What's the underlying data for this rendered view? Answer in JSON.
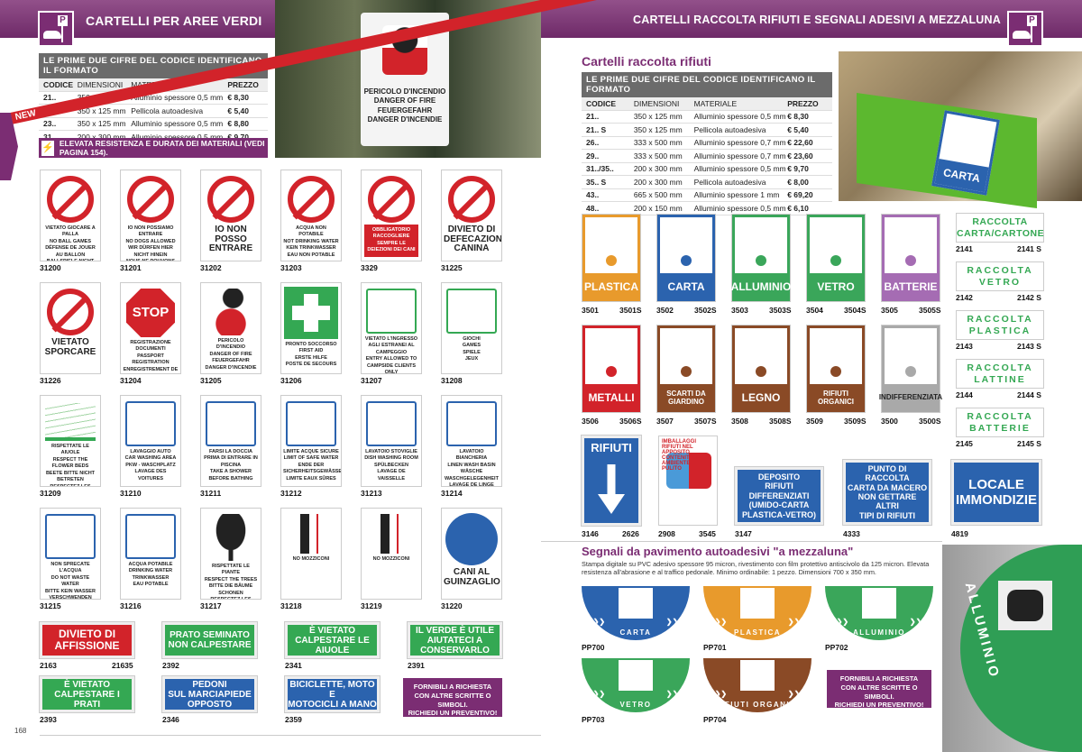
{
  "left_page": {
    "header_title": "CARTELLI PER AREE VERDI",
    "table": {
      "heading": "LE PRIME DUE CIFRE DEL CODICE IDENTIFICANO IL FORMATO",
      "columns": [
        "CODICE",
        "DIMENSIONI",
        "MATERIALE",
        "PREZZO"
      ],
      "rows": [
        [
          "21..",
          "350 x 125 mm",
          "Alluminio spessore 0,5 mm",
          "€ 8,30"
        ],
        [
          "21.. S",
          "350 x 125 mm",
          "Pellicola autoadesiva",
          "€ 5,40"
        ],
        [
          "23..",
          "350 x 125 mm",
          "Alluminio spessore 0,5 mm",
          "€ 8,80"
        ],
        [
          "31..",
          "200 x 300 mm",
          "Alluminio spessore 0,5 mm",
          "€ 9,70"
        ]
      ]
    },
    "notice": "ELEVATA RESISTENZA E DURATA DEI MATERIALI (VEDI PAGINA 154).",
    "photo_sign_text": [
      "PERICOLO D'INCENDIO",
      "DANGER OF FIRE",
      "FEUERGEFAHR",
      "DANGER D'INCENDIE"
    ],
    "signs": [
      {
        "code": "31200",
        "kind": "forbid",
        "text": "VIETATO GIOCARE A PALLA\nNO BALL GAMES\nDÉFENSE DE JOUER AU BALLON\nBALLSPIELE NICHT ERLAUBT"
      },
      {
        "code": "31201",
        "kind": "forbid",
        "text": "IO NON POSSIAMO ENTRARE\nNO DOGS ALLOWED\nWIR DÜRFEN HIER NICHT HINEIN\nNOUS NE POUVONS PAS ENTRER"
      },
      {
        "code": "31202",
        "kind": "forbid",
        "big": true,
        "text": "IO NON\nPOSSO\nENTRARE"
      },
      {
        "code": "31203",
        "kind": "forbid",
        "text": "ACQUA NON POTABILE\nNOT DRINKING WATER\nKEIN TRINKWASSER\nEAU NON POTABLE"
      },
      {
        "code": "3329",
        "kind": "forbid",
        "red": true,
        "text": "OBBLIGATORIO RACCOGLIERE SEMPRE LE DEIEZIONI DEI CANI"
      },
      {
        "code": "31225",
        "kind": "forbid",
        "big": true,
        "text": "DIVIETO DI\nDEFECAZIONE\nCANINA"
      },
      {
        "code": "31226",
        "kind": "forbid",
        "big": true,
        "text": "VIETATO\nSPORCARE"
      },
      {
        "code": "31204",
        "kind": "stop",
        "stop": "STOP",
        "text": "REGISTRAZIONE DOCUMENTI\nPASSPORT REGISTRATION\nENREGISTREMENT DE PASSEPORT\nPASSEINTRAGSTELLE"
      },
      {
        "code": "31205",
        "kind": "fire",
        "text": "PERICOLO D'INCENDIO\nDANGER OF FIRE\nFEUERGEFAHR\nDANGER D'INCENDIE"
      },
      {
        "code": "31206",
        "kind": "cross",
        "text": "PRONTO SOCCORSO\nFIRST AID\nERSTE HILFE\nPOSTE DE SECOURS"
      },
      {
        "code": "31207",
        "kind": "greenpic",
        "text": "VIETATO L'INGRESSO AGLI ESTRANEI AL CAMPEGGIO\nENTRY ALLOWED TO CAMPSIDE CLIENTS ONLY"
      },
      {
        "code": "31208",
        "kind": "greenpic",
        "text": "GIOCHI\nGAMES\nSPIELE\nJEUX"
      },
      {
        "code": "31209",
        "kind": "flowers",
        "text": "RISPETTATE LE AIUOLE\nRESPECT THE FLOWER BEDS\nBEETE BITTE NICHT BETRETEN\nRESPECTEZ LES PLANTES-BANDES"
      },
      {
        "code": "31210",
        "kind": "bluepic",
        "text": "LAVAGGIO AUTO\nCAR WASHING AREA\nPKW - WASCHPLATZ\nLAVAGE DES VOITURES"
      },
      {
        "code": "31211",
        "kind": "bluepic",
        "text": "FARSI LA DOCCIA PRIMA DI ENTRARE IN PISCINA\nTAKE A SHOWER BEFORE BATHING"
      },
      {
        "code": "31212",
        "kind": "bluepic",
        "text": "LIMITE ACQUE SICURE\nLIMIT OF SAFE WATER\nENDE DER SICHERHEITSGEWÄSSER\nLIMITE EAUX SÛRES"
      },
      {
        "code": "31213",
        "kind": "bluepic",
        "text": "LAVATOIO STOVIGLIE\nDISH WASHING ROOM\nSPÜLBECKEN\nLAVAGE DE VAISSELLE"
      },
      {
        "code": "31214",
        "kind": "bluepic",
        "text": "LAVATOIO BIANCHERIA\nLINEN WASH BASIN\nWÄSCHE WASCHGELEGENHEIT\nLAVAGE DE LINGE"
      },
      {
        "code": "31215",
        "kind": "bluepic",
        "text": "NON SPRECATE L'ACQUA\nDO NOT WASTE WATER\nBITTE KEIN WASSER VERSCHWENDEN\nNE GASPILLEZ PAS L'EAU"
      },
      {
        "code": "31216",
        "kind": "bluepic",
        "text": "ACQUA POTABILE\nDRINKING WATER\nTRINKWASSER\nEAU POTABLE"
      },
      {
        "code": "31217",
        "kind": "tree",
        "text": "RISPETTATE LE PIANTE\nRESPECT THE TREES\nBITTE DIE BÄUME SCHONEN\nRESPECTEZ LES PLANTES"
      },
      {
        "code": "31218",
        "kind": "person",
        "text": "NO MOZZICONI"
      },
      {
        "code": "31219",
        "kind": "person",
        "text": "NO MOZZICONI"
      },
      {
        "code": "31220",
        "kind": "dog",
        "big": true,
        "text": "CANI AL\nGUINZAGLIO"
      }
    ],
    "rect_signs": [
      {
        "code": "2163",
        "code2": "21635",
        "bg": "#d2232a",
        "text": "DIVIETO DI\nAFFISSIONE"
      },
      {
        "code": "2392",
        "bg": "#34a853",
        "text": "PRATO SEMINATO\nNON CALPESTARE"
      },
      {
        "code": "2341",
        "bg": "#34a853",
        "text": "È VIETATO\nCALPESTARE LE AIUOLE"
      },
      {
        "code": "2391",
        "bg": "#34a853",
        "text": "IL VERDE È UTILE\nAIUTATECI A CONSERVARLO"
      },
      {
        "code": "2393",
        "bg": "#34a853",
        "text": "È VIETATO\nCALPESTARE I PRATI"
      },
      {
        "code": "2346",
        "bg": "#2b63ae",
        "text": "PEDONI\nSUL MARCIAPIEDE OPPOSTO"
      },
      {
        "code": "2359",
        "bg": "#2b63ae",
        "text": "BICICLETTE, MOTO E\nMOTOCICLI A MANO"
      }
    ],
    "request_box": "FORNIBILI A RICHIESTA\nCON ALTRE SCRITTE O SIMBOLI.\nRICHIEDI UN PREVENTIVO!",
    "page_number": "168"
  },
  "right_page": {
    "header_title": "CARTELLI RACCOLTA RIFIUTI E SEGNALI ADESIVI A MEZZALUNA",
    "section_title": "Cartelli raccolta rifiuti",
    "table": {
      "heading": "LE PRIME DUE CIFRE DEL CODICE IDENTIFICANO IL FORMATO",
      "columns": [
        "CODICE",
        "DIMENSIONI",
        "MATERIALE",
        "PREZZO"
      ],
      "rows": [
        [
          "21..",
          "350 x 125 mm",
          "Alluminio spessore 0,5 mm",
          "€ 8,30"
        ],
        [
          "21.. S",
          "350 x 125 mm",
          "Pellicola autoadesiva",
          "€ 5,40"
        ],
        [
          "26..",
          "333 x 500 mm",
          "Alluminio spessore 0,7 mm",
          "€ 22,60"
        ],
        [
          "29..",
          "333 x 500 mm",
          "Alluminio spessore 0,7 mm",
          "€ 23,60"
        ],
        [
          "31../35..",
          "200 x 300 mm",
          "Alluminio spessore 0,5 mm",
          "€ 9,70"
        ],
        [
          "35.. S",
          "200 x 300 mm",
          "Pellicola autoadesiva",
          "€ 8,00"
        ],
        [
          "43..",
          "665 x 500 mm",
          "Alluminio spessore 1 mm",
          "€ 69,20"
        ],
        [
          "48..",
          "200 x 150 mm",
          "Alluminio spessore 0,5 mm",
          "€ 6,10"
        ]
      ]
    },
    "photo_label": "CARTA",
    "waste_signs": [
      {
        "label": "PLASTICA",
        "code": "3501",
        "code2": "3501S",
        "color": "#e89a2c"
      },
      {
        "label": "CARTA",
        "code": "3502",
        "code2": "3502S",
        "color": "#2b63ae"
      },
      {
        "label": "ALLUMINIO",
        "code": "3503",
        "code2": "3503S",
        "color": "#3aa65a"
      },
      {
        "label": "VETRO",
        "code": "3504",
        "code2": "3504S",
        "color": "#3aa65a"
      },
      {
        "label": "BATTERIE",
        "code": "3505",
        "code2": "3505S",
        "color": "#a56cb3"
      },
      {
        "label": "METALLI",
        "code": "3506",
        "code2": "3506S",
        "color": "#d2232a"
      },
      {
        "label": "SCARTI DA\nGIARDINO",
        "code": "3507",
        "code2": "3507S",
        "color": "#8a4a26"
      },
      {
        "label": "LEGNO",
        "code": "3508",
        "code2": "3508S",
        "color": "#8a4a26"
      },
      {
        "label": "RIFIUTI\nORGANICI",
        "code": "3509",
        "code2": "3509S",
        "color": "#8a4a26"
      },
      {
        "label": "INDIFFERENZIATA",
        "code": "3500",
        "code2": "3500S",
        "color": "#a9a9a9",
        "badge": "NEW"
      }
    ],
    "raccolta_signs": [
      {
        "text": "RACCOLTA\nCARTA/CARTONE",
        "code": "2141",
        "code2": "2141 S"
      },
      {
        "text": "RACCOLTA\nVETRO",
        "code": "2142",
        "code2": "2142 S"
      },
      {
        "text": "RACCOLTA\nPLASTICA",
        "code": "2143",
        "code2": "2143 S"
      },
      {
        "text": "RACCOLTA\nLATTINE",
        "code": "2144",
        "code2": "2144 S"
      },
      {
        "text": "RACCOLTA\nBATTERIE",
        "code": "2145",
        "code2": "2145 S"
      }
    ],
    "misc_signs": [
      {
        "text": "RIFIUTI",
        "code": "3146",
        "code2": "2626"
      },
      {
        "text": "IMBALLAGGI RIFIUTI NEL APPOSITO CONTENITORE\nAMBIENTE\nPULITO",
        "code": "2908",
        "code2": "3545"
      },
      {
        "text": "DEPOSITO\nRIFIUTI\nDIFFERENZIATI\n(UMIDO-CARTA\nPLASTICA-VETRO)",
        "code": "3147"
      },
      {
        "text": "PUNTO DI RACCOLTA\nCARTA DA MACERO\nNON GETTARE ALTRI\nTIPI DI RIFIUTI",
        "code": "4333"
      },
      {
        "text": "LOCALE\nIMMONDIZIE",
        "code": "4819"
      }
    ],
    "floor_section": {
      "title": "Segnali da pavimento autoadesivi \"a mezzaluna\"",
      "description": "Stampa digitale su PVC adesivo spessore 95 micron, rivestimento con film protettivo antiscivolo da 125 micron. Elevata resistenza all'abrasione e al traffico pedonale. Minimo ordinabile: 1 pezzo. Dimensioni 700 x 350 mm.",
      "items": [
        {
          "label": "CARTA",
          "code": "PP700",
          "color": "#2b63ae"
        },
        {
          "label": "PLASTICA",
          "code": "PP701",
          "color": "#e89a2c"
        },
        {
          "label": "ALLUMINIO",
          "code": "PP702",
          "color": "#3aa65a"
        },
        {
          "label": "VETRO",
          "code": "PP703",
          "color": "#3aa65a"
        },
        {
          "label": "RIFIUTI ORGANICI",
          "code": "PP704",
          "color": "#8a4a26"
        }
      ],
      "request_box": "FORNIBILI A RICHIESTA\nCON ALTRE SCRITTE O SIMBOLI.\nRICHIEDI UN PREVENTIVO!",
      "photo_label": "ALLUMINIO"
    }
  },
  "colors": {
    "brand_purple": "#7b2d73",
    "table_header": "#6b6b6b"
  }
}
